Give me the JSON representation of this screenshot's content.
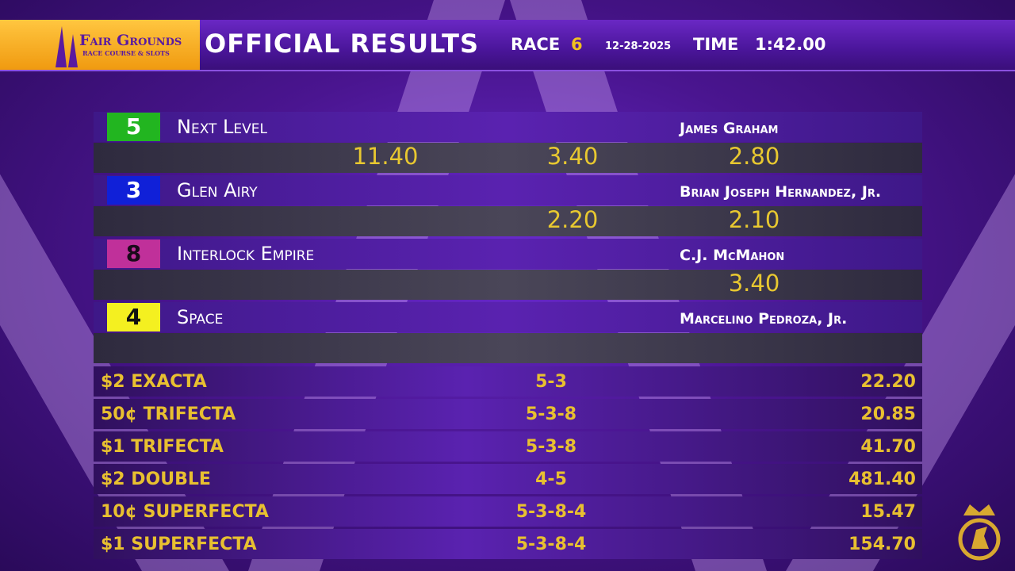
{
  "header": {
    "logo_name": "Fair Grounds",
    "logo_tagline": "Race Course & Slots",
    "title": "OFFICIAL RESULTS",
    "race_label": "RACE",
    "race_number": "6",
    "date": "12-28-2025",
    "time_label": "TIME",
    "time": "1:42.00"
  },
  "finishers": [
    {
      "program": "5",
      "color": "#22b520",
      "text_color": "#ffffff",
      "horse": "Next Level",
      "jockey": "James Graham",
      "payouts": {
        "win": "11.40",
        "place": "3.40",
        "show": "2.80"
      }
    },
    {
      "program": "3",
      "color": "#1020d8",
      "text_color": "#ffffff",
      "horse": "Glen Airy",
      "jockey": "Brian Joseph Hernandez, Jr.",
      "payouts": {
        "place": "2.20",
        "show": "2.10"
      }
    },
    {
      "program": "8",
      "color": "#c0309a",
      "text_color": "#1a0a1a",
      "horse": "Interlock Empire",
      "jockey": "C.J. McMahon",
      "payouts": {
        "show": "3.40"
      }
    },
    {
      "program": "4",
      "color": "#f4f020",
      "text_color": "#111111",
      "horse": "Space",
      "jockey": "Marcelino Pedroza, Jr."
    }
  ],
  "exotics": [
    {
      "bet": "$2 EXACTA",
      "combination": "5-3",
      "payout": "22.20"
    },
    {
      "bet": "50¢ TRIFECTA",
      "combination": "5-3-8",
      "payout": "20.85"
    },
    {
      "bet": "$1 TRIFECTA",
      "combination": "5-3-8",
      "payout": "41.70"
    },
    {
      "bet": "$2 DOUBLE",
      "combination": "4-5",
      "payout": "481.40"
    },
    {
      "bet": "10¢ SUPERFECTA",
      "combination": "5-3-8-4",
      "payout": "15.47"
    },
    {
      "bet": "$1 SUPERFECTA",
      "combination": "5-3-8-4",
      "payout": "154.70"
    }
  ]
}
